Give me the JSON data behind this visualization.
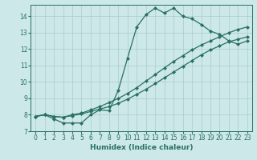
{
  "xlabel": "Humidex (Indice chaleur)",
  "background_color": "#cce8e8",
  "grid_color": "#aacccc",
  "line_color": "#2a7060",
  "xlim": [
    -0.5,
    23.5
  ],
  "ylim": [
    7,
    14.7
  ],
  "yticks": [
    7,
    8,
    9,
    10,
    11,
    12,
    13,
    14
  ],
  "xticks": [
    0,
    1,
    2,
    3,
    4,
    5,
    6,
    7,
    8,
    9,
    10,
    11,
    12,
    13,
    14,
    15,
    16,
    17,
    18,
    19,
    20,
    21,
    22,
    23
  ],
  "line1_x": [
    0,
    1,
    2,
    3,
    4,
    5,
    6,
    7,
    8,
    9,
    10,
    11,
    12,
    13,
    14,
    15,
    16,
    17,
    18,
    19,
    20,
    21,
    22,
    23
  ],
  "line1_y": [
    7.9,
    8.0,
    7.75,
    7.5,
    7.5,
    7.5,
    8.0,
    8.3,
    8.25,
    9.5,
    11.45,
    13.35,
    14.1,
    14.5,
    14.2,
    14.5,
    14.0,
    13.85,
    13.5,
    13.1,
    12.9,
    12.5,
    12.3,
    12.5
  ],
  "line2_x": [
    0,
    1,
    2,
    3,
    4,
    5,
    6,
    7,
    8,
    9,
    10,
    11,
    12,
    13,
    14,
    15,
    16,
    17,
    18,
    19,
    20,
    21,
    22,
    23
  ],
  "line2_y": [
    7.9,
    8.0,
    7.9,
    7.85,
    7.95,
    8.05,
    8.2,
    8.35,
    8.5,
    8.7,
    8.95,
    9.25,
    9.55,
    9.9,
    10.25,
    10.6,
    10.95,
    11.3,
    11.65,
    11.95,
    12.2,
    12.45,
    12.6,
    12.75
  ],
  "line3_x": [
    0,
    1,
    2,
    3,
    4,
    5,
    6,
    7,
    8,
    9,
    10,
    11,
    12,
    13,
    14,
    15,
    16,
    17,
    18,
    19,
    20,
    21,
    22,
    23
  ],
  "line3_y": [
    7.9,
    8.0,
    7.9,
    7.85,
    8.0,
    8.1,
    8.3,
    8.5,
    8.75,
    9.0,
    9.3,
    9.65,
    10.05,
    10.45,
    10.85,
    11.25,
    11.6,
    11.95,
    12.25,
    12.5,
    12.75,
    13.0,
    13.2,
    13.35
  ],
  "marker": "D",
  "marker_size": 2.0,
  "line_width": 0.9,
  "xlabel_fontsize": 6.5,
  "tick_fontsize": 5.5
}
